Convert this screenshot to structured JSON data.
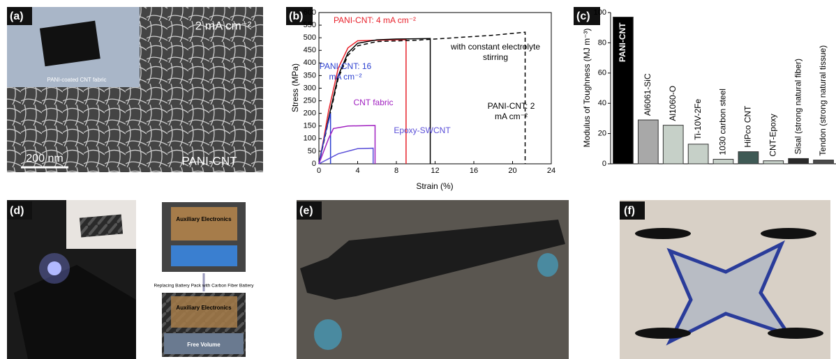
{
  "panels": {
    "a": {
      "label": "(a)",
      "current": "2 mA cm⁻²",
      "inset_caption": "PANI-coated CNT fabric",
      "scale_bar": "200 nm",
      "sample": "PANI-CNT"
    },
    "d": {
      "label": "(d)",
      "top_box": "Auxiliary Electronics",
      "arrow_caption": "Replacing Battery Pack with Carbon Fiber Battery",
      "bottom_box": "Auxiliary Electronics",
      "free_volume": "Free Volume"
    },
    "e": {
      "label": "(e)"
    },
    "f": {
      "label": "(f)"
    }
  },
  "chart_data": [
    {
      "type": "line",
      "panel_label": "(b)",
      "x_label": "Strain (%)",
      "y_label": "Stress (MPa)",
      "xlim": [
        0,
        24
      ],
      "xticks": [
        0,
        4,
        8,
        12,
        16,
        20,
        24
      ],
      "ylim": [
        0,
        600
      ],
      "yticks": [
        0,
        50,
        100,
        150,
        200,
        250,
        300,
        350,
        400,
        450,
        500,
        550,
        600
      ],
      "series": [
        {
          "name": "PANI-CNT: 4 mA cm⁻²",
          "color": "#e8202a",
          "dashed": false,
          "x": [
            0,
            0.5,
            1,
            2,
            3,
            4,
            6,
            8,
            9,
            9
          ],
          "values": [
            0,
            100,
            210,
            380,
            460,
            488,
            490,
            492,
            492,
            0
          ]
        },
        {
          "name": "PANI-CNT: 2 mA cm⁻²",
          "color": "#000000",
          "dashed": false,
          "x": [
            0,
            1,
            2,
            3,
            4,
            6,
            8,
            10,
            11.5,
            11.5
          ],
          "values": [
            0,
            180,
            350,
            440,
            478,
            492,
            495,
            496,
            497,
            0
          ]
        },
        {
          "name": "with constant electrolyte stirring",
          "color": "#000000",
          "dashed": true,
          "x": [
            0,
            1,
            2,
            3,
            4,
            6,
            10,
            14,
            18,
            21.3,
            21.3
          ],
          "values": [
            0,
            170,
            340,
            430,
            468,
            485,
            490,
            500,
            510,
            522,
            0
          ]
        },
        {
          "name": "PANI-CNT: 16 mA cm⁻²",
          "color": "#2a3fd0",
          "dashed": false,
          "x": [
            0,
            0.6,
            1.2,
            1.2
          ],
          "values": [
            0,
            110,
            200,
            0
          ]
        },
        {
          "name": "CNT fabric",
          "color": "#a020c0",
          "dashed": false,
          "x": [
            0,
            1,
            1.5,
            3,
            5.8,
            5.8
          ],
          "values": [
            0,
            100,
            140,
            150,
            152,
            0
          ]
        },
        {
          "name": "Epoxy-SWCNT",
          "color": "#5a4fd8",
          "dashed": false,
          "x": [
            0,
            2,
            4,
            5.6,
            5.6
          ],
          "values": [
            0,
            40,
            60,
            62,
            0
          ]
        }
      ]
    },
    {
      "type": "bar",
      "panel_label": "(c)",
      "y_label": "Modulus of Toughness (MJ m⁻³)",
      "ylim": [
        0,
        100
      ],
      "yticks": [
        0,
        20,
        40,
        60,
        80,
        100
      ],
      "categories": [
        "PANI-CNT",
        "Al6061-SiC",
        "Al1060-O",
        "Ti-10V-2Fe",
        "1030 carbon steel",
        "HiPco CNT",
        "CNT-Epoxy",
        "Sisal (strong natural fiber)",
        "Tendon (strong natural tissue)"
      ],
      "values": [
        97,
        29,
        25.5,
        13,
        3,
        8,
        2,
        3.5,
        2.5
      ],
      "colors": [
        "#000000",
        "#a8a8a8",
        "#c6d0c8",
        "#c6d0c8",
        "#c6d0c8",
        "#3f5a55",
        "#c6d0c8",
        "#2a2a2a",
        "#4a4a4a"
      ]
    }
  ]
}
